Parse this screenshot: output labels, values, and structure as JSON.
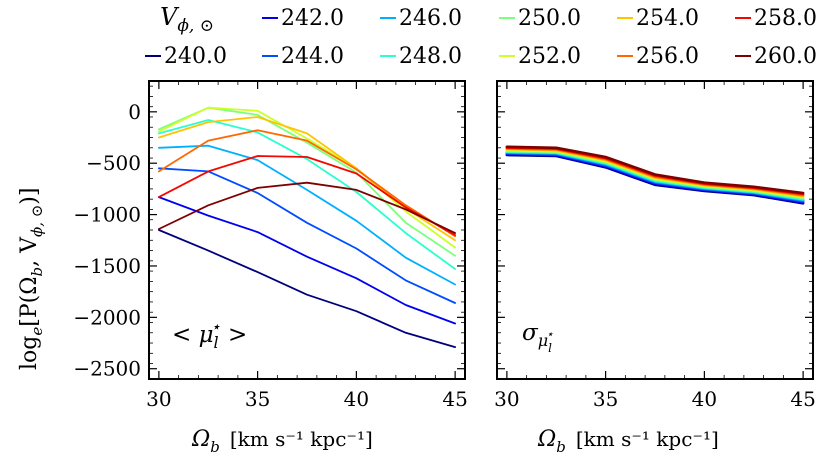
{
  "legend": {
    "title": "V",
    "title_sub": "ϕ, ⊙",
    "entries": [
      "240.0",
      "242.0",
      "244.0",
      "246.0",
      "248.0",
      "250.0",
      "252.0",
      "254.0",
      "256.0",
      "258.0",
      "260.0"
    ]
  },
  "chart_data": [
    {
      "type": "line",
      "panel": "left",
      "annotation": "< μ",
      "annotation_sub": "l",
      "annotation_sup": "⋆",
      "annotation_tail": " >",
      "xlabel": "Ω",
      "xlabel_sub": "b",
      "xlabel_unit": "[km s⁻¹ kpc⁻¹]",
      "ylabel": "log",
      "ylabel_sub": "e",
      "ylabel_rest": "[P(Ω",
      "ylabel_rest_sub": "b",
      "ylabel_tail": ", V",
      "ylabel_tail_sub": "ϕ, ⊙",
      "ylabel_close": ")]",
      "xlim": [
        29.5,
        45.5
      ],
      "ylim": [
        -2600,
        300
      ],
      "xticks": [
        30,
        35,
        40,
        45
      ],
      "xtick_labels": [
        "30",
        "35",
        "40",
        "45"
      ],
      "yticks": [
        0,
        -500,
        -1000,
        -1500,
        -2000,
        -2500
      ],
      "ytick_labels": [
        "0",
        "−500",
        "−1000",
        "−1500",
        "−2000",
        "−2500"
      ],
      "x": [
        30,
        32.5,
        35,
        37.5,
        40,
        42.5,
        45
      ],
      "series": [
        {
          "name": "240.0",
          "color": "#00007f",
          "values": [
            -1150,
            -1350,
            -1560,
            -1780,
            -1940,
            -2150,
            -2290
          ]
        },
        {
          "name": "242.0",
          "color": "#0000f1",
          "values": [
            -830,
            -1010,
            -1170,
            -1410,
            -1620,
            -1880,
            -2060
          ]
        },
        {
          "name": "244.0",
          "color": "#004cff",
          "values": [
            -550,
            -580,
            -790,
            -1080,
            -1330,
            -1640,
            -1860
          ]
        },
        {
          "name": "246.0",
          "color": "#00b0ff",
          "values": [
            -350,
            -330,
            -470,
            -760,
            -1060,
            -1420,
            -1680
          ]
        },
        {
          "name": "248.0",
          "color": "#29ffce",
          "values": [
            -210,
            -80,
            -200,
            -460,
            -780,
            -1180,
            -1530
          ]
        },
        {
          "name": "250.0",
          "color": "#7dff7a",
          "values": [
            -170,
            40,
            -30,
            -300,
            -590,
            -1080,
            -1400
          ]
        },
        {
          "name": "252.0",
          "color": "#ceff29",
          "values": [
            -190,
            40,
            10,
            -260,
            -550,
            -970,
            -1320
          ]
        },
        {
          "name": "254.0",
          "color": "#ffc400",
          "values": [
            -250,
            -100,
            -50,
            -210,
            -550,
            -940,
            -1250
          ]
        },
        {
          "name": "256.0",
          "color": "#ff6800",
          "values": [
            -580,
            -280,
            -180,
            -280,
            -560,
            -910,
            -1210
          ]
        },
        {
          "name": "258.0",
          "color": "#f10800",
          "values": [
            -830,
            -580,
            -430,
            -440,
            -600,
            -930,
            -1200
          ]
        },
        {
          "name": "260.0",
          "color": "#7f0000",
          "values": [
            -1140,
            -910,
            -740,
            -690,
            -760,
            -950,
            -1180
          ]
        }
      ]
    },
    {
      "type": "line",
      "panel": "right",
      "annotation": "σ",
      "annotation_sub": "μ",
      "annotation_sub_sub": "l",
      "annotation_sup": "⋆",
      "xlabel": "Ω",
      "xlabel_sub": "b",
      "xlabel_unit": "[km s⁻¹ kpc⁻¹]",
      "xlim": [
        29.5,
        45.5
      ],
      "ylim": [
        -2600,
        300
      ],
      "xticks": [
        30,
        35,
        40,
        45
      ],
      "xtick_labels": [
        "30",
        "35",
        "40",
        "45"
      ],
      "x": [
        30,
        32.5,
        35,
        37.5,
        40,
        42.5,
        45
      ],
      "series": [
        {
          "name": "240.0",
          "color": "#00007f",
          "values": [
            -420,
            -430,
            -540,
            -710,
            -770,
            -810,
            -890
          ]
        },
        {
          "name": "242.0",
          "color": "#0000f1",
          "values": [
            -412,
            -422,
            -530,
            -700,
            -762,
            -802,
            -880
          ]
        },
        {
          "name": "244.0",
          "color": "#004cff",
          "values": [
            -404,
            -414,
            -520,
            -690,
            -754,
            -794,
            -870
          ]
        },
        {
          "name": "246.0",
          "color": "#00b0ff",
          "values": [
            -396,
            -406,
            -510,
            -680,
            -746,
            -786,
            -860
          ]
        },
        {
          "name": "248.0",
          "color": "#29ffce",
          "values": [
            -388,
            -398,
            -500,
            -670,
            -738,
            -778,
            -850
          ]
        },
        {
          "name": "250.0",
          "color": "#7dff7a",
          "values": [
            -380,
            -390,
            -490,
            -660,
            -730,
            -770,
            -840
          ]
        },
        {
          "name": "252.0",
          "color": "#ceff29",
          "values": [
            -372,
            -382,
            -480,
            -650,
            -722,
            -762,
            -830
          ]
        },
        {
          "name": "254.0",
          "color": "#ffc400",
          "values": [
            -364,
            -374,
            -470,
            -640,
            -714,
            -754,
            -820
          ]
        },
        {
          "name": "256.0",
          "color": "#ff6800",
          "values": [
            -356,
            -366,
            -460,
            -630,
            -706,
            -746,
            -810
          ]
        },
        {
          "name": "258.0",
          "color": "#f10800",
          "values": [
            -348,
            -358,
            -450,
            -620,
            -698,
            -738,
            -800
          ]
        },
        {
          "name": "260.0",
          "color": "#7f0000",
          "values": [
            -340,
            -350,
            -440,
            -610,
            -690,
            -730,
            -790
          ]
        }
      ]
    }
  ]
}
